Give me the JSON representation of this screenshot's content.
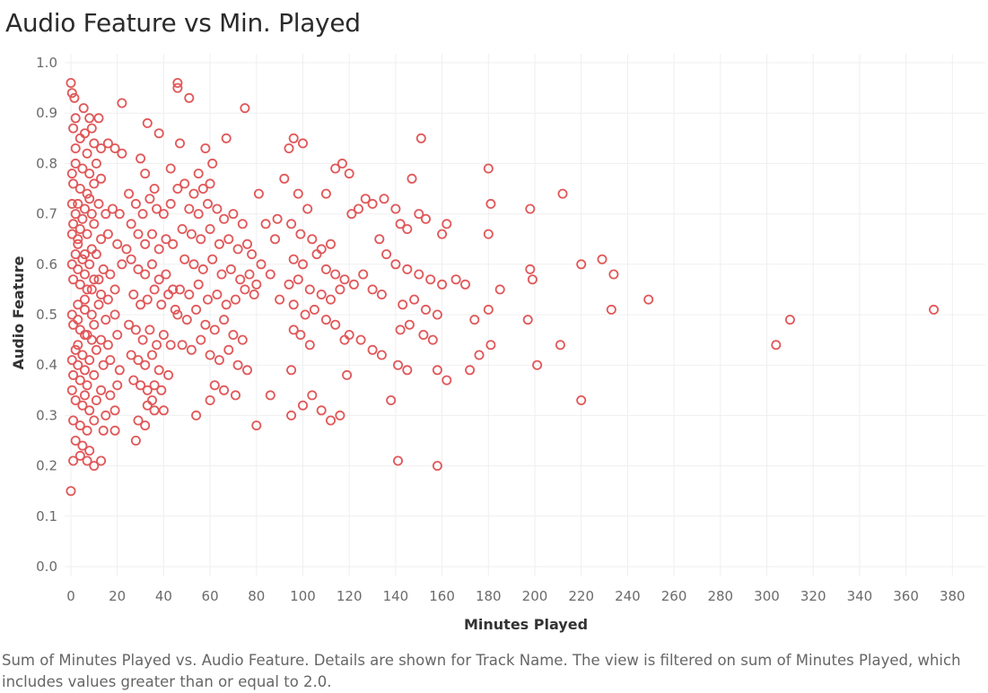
{
  "title": "Audio Feature vs Min. Played",
  "caption": "Sum of Minutes Played vs. Audio Feature.  Details are shown for Track Name. The view is filtered on sum of Minutes Played, which includes values greater than or equal to 2.0.",
  "colors": {
    "marker": "#e15759",
    "grid": "#efefef",
    "tick_text": "#6b6b6b"
  },
  "chart_data": {
    "type": "scatter",
    "title": "Audio Feature vs Min. Played",
    "xlabel": "Minutes Played",
    "ylabel": "Audio Feature",
    "xlim": [
      -2,
      388
    ],
    "ylim": [
      0,
      1.0
    ],
    "x_ticks": [
      0,
      20,
      40,
      60,
      80,
      100,
      120,
      140,
      160,
      180,
      200,
      220,
      240,
      260,
      280,
      300,
      320,
      340,
      360,
      380
    ],
    "y_ticks": [
      "0.0",
      "0.1",
      "0.2",
      "0.3",
      "0.4",
      "0.5",
      "0.6",
      "0.7",
      "0.8",
      "0.9",
      "1.0"
    ],
    "grid": true,
    "marker": "hollow circle",
    "points": [
      [
        0.0,
        0.96
      ],
      [
        0.5,
        0.94
      ],
      [
        1.5,
        0.93
      ],
      [
        5.5,
        0.91
      ],
      [
        2.0,
        0.89
      ],
      [
        1.0,
        0.87
      ],
      [
        4.0,
        0.85
      ],
      [
        6.0,
        0.86
      ],
      [
        9.0,
        0.87
      ],
      [
        8.0,
        0.89
      ],
      [
        12.0,
        0.89
      ],
      [
        2.0,
        0.83
      ],
      [
        7.0,
        0.82
      ],
      [
        10.0,
        0.84
      ],
      [
        13.0,
        0.83
      ],
      [
        16.0,
        0.84
      ],
      [
        19.0,
        0.83
      ],
      [
        22.0,
        0.82
      ],
      [
        2.0,
        0.8
      ],
      [
        5.0,
        0.79
      ],
      [
        8.0,
        0.78
      ],
      [
        11.0,
        0.8
      ],
      [
        1.0,
        0.76
      ],
      [
        4.0,
        0.75
      ],
      [
        7.0,
        0.74
      ],
      [
        10.0,
        0.76
      ],
      [
        13.0,
        0.77
      ],
      [
        3.0,
        0.72
      ],
      [
        6.0,
        0.71
      ],
      [
        9.0,
        0.7
      ],
      [
        12.0,
        0.72
      ],
      [
        15.0,
        0.7
      ],
      [
        18.0,
        0.71
      ],
      [
        21.0,
        0.7
      ],
      [
        1.0,
        0.68
      ],
      [
        4.0,
        0.67
      ],
      [
        7.0,
        0.66
      ],
      [
        10.0,
        0.68
      ],
      [
        13.0,
        0.65
      ],
      [
        16.0,
        0.66
      ],
      [
        20.0,
        0.64
      ],
      [
        24.0,
        0.63
      ],
      [
        2.0,
        0.62
      ],
      [
        5.0,
        0.61
      ],
      [
        8.0,
        0.6
      ],
      [
        11.0,
        0.62
      ],
      [
        14.0,
        0.59
      ],
      [
        17.0,
        0.58
      ],
      [
        22.0,
        0.6
      ],
      [
        1.0,
        0.57
      ],
      [
        4.0,
        0.56
      ],
      [
        7.0,
        0.55
      ],
      [
        10.0,
        0.57
      ],
      [
        13.0,
        0.54
      ],
      [
        16.0,
        0.53
      ],
      [
        19.0,
        0.55
      ],
      [
        3.0,
        0.52
      ],
      [
        6.0,
        0.51
      ],
      [
        9.0,
        0.5
      ],
      [
        12.0,
        0.52
      ],
      [
        15.0,
        0.49
      ],
      [
        19.0,
        0.5
      ],
      [
        1.0,
        0.48
      ],
      [
        4.0,
        0.47
      ],
      [
        7.0,
        0.46
      ],
      [
        10.0,
        0.48
      ],
      [
        13.0,
        0.45
      ],
      [
        16.0,
        0.44
      ],
      [
        20.0,
        0.46
      ],
      [
        2.0,
        0.43
      ],
      [
        5.0,
        0.42
      ],
      [
        8.0,
        0.41
      ],
      [
        11.0,
        0.43
      ],
      [
        14.0,
        0.4
      ],
      [
        17.0,
        0.41
      ],
      [
        21.0,
        0.39
      ],
      [
        1.0,
        0.38
      ],
      [
        4.0,
        0.37
      ],
      [
        7.0,
        0.36
      ],
      [
        10.0,
        0.38
      ],
      [
        13.0,
        0.35
      ],
      [
        17.0,
        0.34
      ],
      [
        20.0,
        0.36
      ],
      [
        2.0,
        0.33
      ],
      [
        5.0,
        0.32
      ],
      [
        8.0,
        0.31
      ],
      [
        11.0,
        0.33
      ],
      [
        15.0,
        0.3
      ],
      [
        19.0,
        0.31
      ],
      [
        1.0,
        0.29
      ],
      [
        4.0,
        0.28
      ],
      [
        7.0,
        0.27
      ],
      [
        10.0,
        0.29
      ],
      [
        14.0,
        0.27
      ],
      [
        19.0,
        0.27
      ],
      [
        2.0,
        0.25
      ],
      [
        5.0,
        0.24
      ],
      [
        8.0,
        0.23
      ],
      [
        1.0,
        0.21
      ],
      [
        4.0,
        0.22
      ],
      [
        7.0,
        0.21
      ],
      [
        10.0,
        0.2
      ],
      [
        13.0,
        0.21
      ],
      [
        0.0,
        0.15
      ],
      [
        3.0,
        0.64
      ],
      [
        6.0,
        0.58
      ],
      [
        9.0,
        0.63
      ],
      [
        12.0,
        0.57
      ],
      [
        3.0,
        0.44
      ],
      [
        6.0,
        0.39
      ],
      [
        9.0,
        0.45
      ],
      [
        2.0,
        0.7
      ],
      [
        5.0,
        0.69
      ],
      [
        8.0,
        0.73
      ],
      [
        3.0,
        0.65
      ],
      [
        6.0,
        0.53
      ],
      [
        9.0,
        0.55
      ],
      [
        0.5,
        0.6
      ],
      [
        0.5,
        0.5
      ],
      [
        0.5,
        0.66
      ],
      [
        0.5,
        0.41
      ],
      [
        0.5,
        0.35
      ],
      [
        0.5,
        0.72
      ],
      [
        0.5,
        0.78
      ],
      [
        3.0,
        0.59
      ],
      [
        6.0,
        0.62
      ],
      [
        3.0,
        0.49
      ],
      [
        6.0,
        0.46
      ],
      [
        3.0,
        0.4
      ],
      [
        6.0,
        0.34
      ],
      [
        22.0,
        0.92
      ],
      [
        30.0,
        0.81
      ],
      [
        33.0,
        0.88
      ],
      [
        38.0,
        0.86
      ],
      [
        32.0,
        0.78
      ],
      [
        36.0,
        0.75
      ],
      [
        25.0,
        0.74
      ],
      [
        28.0,
        0.72
      ],
      [
        31.0,
        0.7
      ],
      [
        34.0,
        0.73
      ],
      [
        37.0,
        0.71
      ],
      [
        40.0,
        0.7
      ],
      [
        43.0,
        0.72
      ],
      [
        26.0,
        0.68
      ],
      [
        29.0,
        0.66
      ],
      [
        32.0,
        0.64
      ],
      [
        35.0,
        0.66
      ],
      [
        38.0,
        0.63
      ],
      [
        41.0,
        0.65
      ],
      [
        44.0,
        0.64
      ],
      [
        26.0,
        0.61
      ],
      [
        29.0,
        0.59
      ],
      [
        32.0,
        0.58
      ],
      [
        35.0,
        0.6
      ],
      [
        38.0,
        0.57
      ],
      [
        41.0,
        0.58
      ],
      [
        44.0,
        0.55
      ],
      [
        27.0,
        0.54
      ],
      [
        30.0,
        0.52
      ],
      [
        33.0,
        0.53
      ],
      [
        36.0,
        0.55
      ],
      [
        39.0,
        0.52
      ],
      [
        42.0,
        0.54
      ],
      [
        45.0,
        0.51
      ],
      [
        25.0,
        0.48
      ],
      [
        28.0,
        0.47
      ],
      [
        31.0,
        0.45
      ],
      [
        34.0,
        0.47
      ],
      [
        37.0,
        0.44
      ],
      [
        40.0,
        0.46
      ],
      [
        43.0,
        0.44
      ],
      [
        26.0,
        0.42
      ],
      [
        29.0,
        0.41
      ],
      [
        32.0,
        0.4
      ],
      [
        35.0,
        0.42
      ],
      [
        38.0,
        0.39
      ],
      [
        42.0,
        0.38
      ],
      [
        27.0,
        0.37
      ],
      [
        30.0,
        0.36
      ],
      [
        33.0,
        0.35
      ],
      [
        36.0,
        0.36
      ],
      [
        39.0,
        0.35
      ],
      [
        33.0,
        0.32
      ],
      [
        36.0,
        0.31
      ],
      [
        40.0,
        0.31
      ],
      [
        29.0,
        0.29
      ],
      [
        32.0,
        0.28
      ],
      [
        28.0,
        0.25
      ],
      [
        35.0,
        0.33
      ],
      [
        46.0,
        0.96
      ],
      [
        46.0,
        0.95
      ],
      [
        51.0,
        0.93
      ],
      [
        75.0,
        0.91
      ],
      [
        47.0,
        0.84
      ],
      [
        67.0,
        0.85
      ],
      [
        58.0,
        0.83
      ],
      [
        43.0,
        0.79
      ],
      [
        55.0,
        0.78
      ],
      [
        61.0,
        0.8
      ],
      [
        46.0,
        0.75
      ],
      [
        49.0,
        0.76
      ],
      [
        53.0,
        0.74
      ],
      [
        57.0,
        0.75
      ],
      [
        60.0,
        0.76
      ],
      [
        51.0,
        0.71
      ],
      [
        55.0,
        0.7
      ],
      [
        59.0,
        0.72
      ],
      [
        63.0,
        0.71
      ],
      [
        66.0,
        0.69
      ],
      [
        70.0,
        0.7
      ],
      [
        74.0,
        0.68
      ],
      [
        48.0,
        0.67
      ],
      [
        52.0,
        0.66
      ],
      [
        56.0,
        0.65
      ],
      [
        60.0,
        0.67
      ],
      [
        64.0,
        0.64
      ],
      [
        68.0,
        0.65
      ],
      [
        72.0,
        0.63
      ],
      [
        76.0,
        0.64
      ],
      [
        49.0,
        0.61
      ],
      [
        53.0,
        0.6
      ],
      [
        57.0,
        0.59
      ],
      [
        61.0,
        0.61
      ],
      [
        65.0,
        0.58
      ],
      [
        69.0,
        0.59
      ],
      [
        73.0,
        0.57
      ],
      [
        77.0,
        0.58
      ],
      [
        80.0,
        0.56
      ],
      [
        47.0,
        0.55
      ],
      [
        51.0,
        0.54
      ],
      [
        55.0,
        0.56
      ],
      [
        59.0,
        0.53
      ],
      [
        63.0,
        0.54
      ],
      [
        67.0,
        0.52
      ],
      [
        71.0,
        0.53
      ],
      [
        75.0,
        0.55
      ],
      [
        79.0,
        0.54
      ],
      [
        46.0,
        0.5
      ],
      [
        50.0,
        0.49
      ],
      [
        54.0,
        0.51
      ],
      [
        58.0,
        0.48
      ],
      [
        62.0,
        0.47
      ],
      [
        66.0,
        0.49
      ],
      [
        70.0,
        0.46
      ],
      [
        74.0,
        0.45
      ],
      [
        48.0,
        0.44
      ],
      [
        52.0,
        0.43
      ],
      [
        56.0,
        0.45
      ],
      [
        60.0,
        0.42
      ],
      [
        64.0,
        0.41
      ],
      [
        68.0,
        0.43
      ],
      [
        72.0,
        0.4
      ],
      [
        76.0,
        0.39
      ],
      [
        62.0,
        0.36
      ],
      [
        66.0,
        0.35
      ],
      [
        71.0,
        0.34
      ],
      [
        54.0,
        0.3
      ],
      [
        60.0,
        0.33
      ],
      [
        80.0,
        0.28
      ],
      [
        86.0,
        0.34
      ],
      [
        81.0,
        0.74
      ],
      [
        84.0,
        0.68
      ],
      [
        88.0,
        0.65
      ],
      [
        78.0,
        0.62
      ],
      [
        82.0,
        0.6
      ],
      [
        86.0,
        0.58
      ],
      [
        90.0,
        0.53
      ],
      [
        92.0,
        0.77
      ],
      [
        94.0,
        0.83
      ],
      [
        96.0,
        0.85
      ],
      [
        100.0,
        0.84
      ],
      [
        98.0,
        0.74
      ],
      [
        102.0,
        0.71
      ],
      [
        89.0,
        0.69
      ],
      [
        95.0,
        0.68
      ],
      [
        99.0,
        0.66
      ],
      [
        104.0,
        0.65
      ],
      [
        108.0,
        0.63
      ],
      [
        112.0,
        0.64
      ],
      [
        96.0,
        0.61
      ],
      [
        100.0,
        0.6
      ],
      [
        106.0,
        0.62
      ],
      [
        110.0,
        0.59
      ],
      [
        114.0,
        0.58
      ],
      [
        94.0,
        0.56
      ],
      [
        98.0,
        0.57
      ],
      [
        103.0,
        0.55
      ],
      [
        108.0,
        0.54
      ],
      [
        112.0,
        0.53
      ],
      [
        116.0,
        0.55
      ],
      [
        96.0,
        0.52
      ],
      [
        101.0,
        0.5
      ],
      [
        105.0,
        0.51
      ],
      [
        110.0,
        0.49
      ],
      [
        114.0,
        0.48
      ],
      [
        96.0,
        0.47
      ],
      [
        99.0,
        0.46
      ],
      [
        103.0,
        0.44
      ],
      [
        118.0,
        0.45
      ],
      [
        95.0,
        0.39
      ],
      [
        100.0,
        0.32
      ],
      [
        104.0,
        0.34
      ],
      [
        108.0,
        0.31
      ],
      [
        112.0,
        0.29
      ],
      [
        116.0,
        0.3
      ],
      [
        95.0,
        0.3
      ],
      [
        110.0,
        0.74
      ],
      [
        114.0,
        0.79
      ],
      [
        117.0,
        0.8
      ],
      [
        120.0,
        0.78
      ],
      [
        121.0,
        0.7
      ],
      [
        124.0,
        0.71
      ],
      [
        127.0,
        0.73
      ],
      [
        130.0,
        0.72
      ],
      [
        133.0,
        0.65
      ],
      [
        136.0,
        0.62
      ],
      [
        118.0,
        0.57
      ],
      [
        122.0,
        0.56
      ],
      [
        126.0,
        0.58
      ],
      [
        130.0,
        0.55
      ],
      [
        134.0,
        0.54
      ],
      [
        120.0,
        0.46
      ],
      [
        125.0,
        0.45
      ],
      [
        130.0,
        0.43
      ],
      [
        134.0,
        0.42
      ],
      [
        119.0,
        0.38
      ],
      [
        138.0,
        0.33
      ],
      [
        135.0,
        0.73
      ],
      [
        140.0,
        0.71
      ],
      [
        142.0,
        0.68
      ],
      [
        145.0,
        0.67
      ],
      [
        150.0,
        0.7
      ],
      [
        153.0,
        0.69
      ],
      [
        147.0,
        0.77
      ],
      [
        151.0,
        0.85
      ],
      [
        140.0,
        0.6
      ],
      [
        145.0,
        0.59
      ],
      [
        150.0,
        0.58
      ],
      [
        155.0,
        0.57
      ],
      [
        160.0,
        0.56
      ],
      [
        143.0,
        0.52
      ],
      [
        148.0,
        0.53
      ],
      [
        153.0,
        0.51
      ],
      [
        158.0,
        0.5
      ],
      [
        142.0,
        0.47
      ],
      [
        146.0,
        0.48
      ],
      [
        152.0,
        0.46
      ],
      [
        156.0,
        0.45
      ],
      [
        141.0,
        0.4
      ],
      [
        145.0,
        0.39
      ],
      [
        158.0,
        0.39
      ],
      [
        162.0,
        0.37
      ],
      [
        141.0,
        0.21
      ],
      [
        158.0,
        0.2
      ],
      [
        160.0,
        0.66
      ],
      [
        162.0,
        0.68
      ],
      [
        166.0,
        0.57
      ],
      [
        170.0,
        0.56
      ],
      [
        174.0,
        0.49
      ],
      [
        176.0,
        0.42
      ],
      [
        172.0,
        0.39
      ],
      [
        180.0,
        0.66
      ],
      [
        181.0,
        0.72
      ],
      [
        180.0,
        0.79
      ],
      [
        185.0,
        0.55
      ],
      [
        180.0,
        0.51
      ],
      [
        181.0,
        0.44
      ],
      [
        198.0,
        0.59
      ],
      [
        199.0,
        0.57
      ],
      [
        197.0,
        0.49
      ],
      [
        201.0,
        0.4
      ],
      [
        198.0,
        0.71
      ],
      [
        212.0,
        0.74
      ],
      [
        211.0,
        0.44
      ],
      [
        220.0,
        0.33
      ],
      [
        220.0,
        0.6
      ],
      [
        229.0,
        0.61
      ],
      [
        234.0,
        0.58
      ],
      [
        233.0,
        0.51
      ],
      [
        249.0,
        0.53
      ],
      [
        304.0,
        0.44
      ],
      [
        310.0,
        0.49
      ],
      [
        372.0,
        0.51
      ]
    ]
  }
}
